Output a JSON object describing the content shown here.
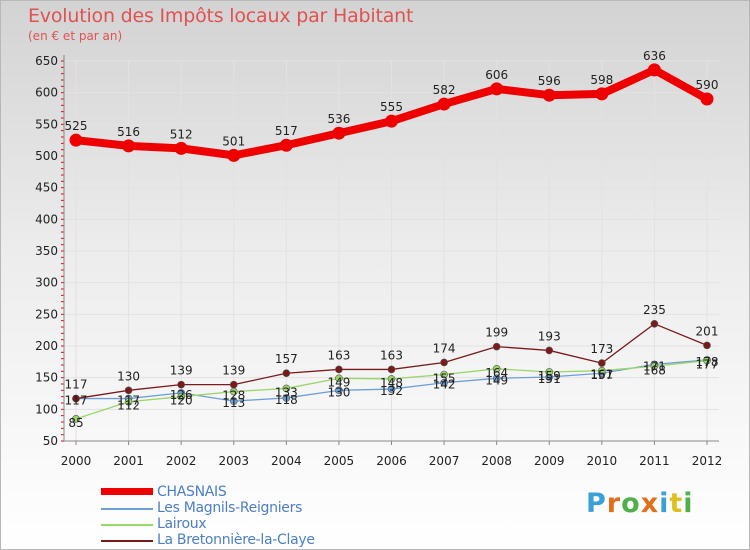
{
  "header": {
    "title": "Evolution des Impôts locaux par Habitant",
    "subtitle": "(en € et par an)"
  },
  "chart_data": {
    "type": "line",
    "title": "Evolution des Impôts locaux par Habitant",
    "subtitle": "(en € et par an)",
    "xlabel": "",
    "ylabel": "",
    "x": [
      "2000",
      "2001",
      "2002",
      "2003",
      "2004",
      "2005",
      "2006",
      "2007",
      "2008",
      "2009",
      "2010",
      "2011",
      "2012"
    ],
    "ylim": [
      50,
      650
    ],
    "yticks": [
      50,
      100,
      150,
      200,
      250,
      300,
      350,
      400,
      450,
      500,
      550,
      600,
      650
    ],
    "grid": true,
    "legend_position": "bottom-left",
    "series": [
      {
        "name": "CHASNAIS",
        "color": "#ee0000",
        "values": [
          525,
          516,
          512,
          501,
          517,
          536,
          555,
          582,
          606,
          596,
          598,
          636,
          590
        ],
        "labels": [
          "525",
          "516",
          "512",
          "501",
          "517",
          "536",
          "555",
          "582",
          "606",
          "596",
          "598",
          "636",
          "590"
        ]
      },
      {
        "name": "Les Magnils-Reigniers",
        "color": "#6c9fd8",
        "values": [
          117,
          117,
          126,
          113,
          118,
          130,
          132,
          142,
          149,
          151,
          157,
          171,
          178
        ],
        "labels": [
          "117",
          "117",
          "126",
          "113",
          "118",
          "130",
          "132",
          "142",
          "149",
          "151",
          "157",
          "171",
          "178"
        ]
      },
      {
        "name": "Lairoux",
        "color": "#9ad66a",
        "values": [
          85,
          112,
          120,
          128,
          133,
          149,
          148,
          155,
          164,
          159,
          161,
          168,
          177
        ],
        "labels": [
          "85",
          "112",
          "120",
          "128",
          "133",
          "149",
          "148",
          "155",
          "164",
          "159",
          "161",
          "168",
          "177"
        ]
      },
      {
        "name": "La Bretonnière-la-Claye",
        "color": "#7a1a1a",
        "values": [
          117,
          130,
          139,
          139,
          157,
          163,
          163,
          174,
          199,
          193,
          173,
          235,
          201
        ],
        "labels": [
          "117",
          "130",
          "139",
          "139",
          "157",
          "163",
          "163",
          "174",
          "199",
          "193",
          "173",
          "235",
          "201"
        ]
      }
    ]
  },
  "legend": {
    "items": [
      "CHASNAIS",
      "Les Magnils-Reigniers",
      "Lairoux",
      "La Bretonnière-la-Claye"
    ]
  },
  "logo": {
    "text": "Proxiti",
    "colors": [
      "#3aa0d8",
      "#e0701a",
      "#4fb04a",
      "#e0701a",
      "#3aa0d8",
      "#e0c020",
      "#4fb04a"
    ]
  }
}
